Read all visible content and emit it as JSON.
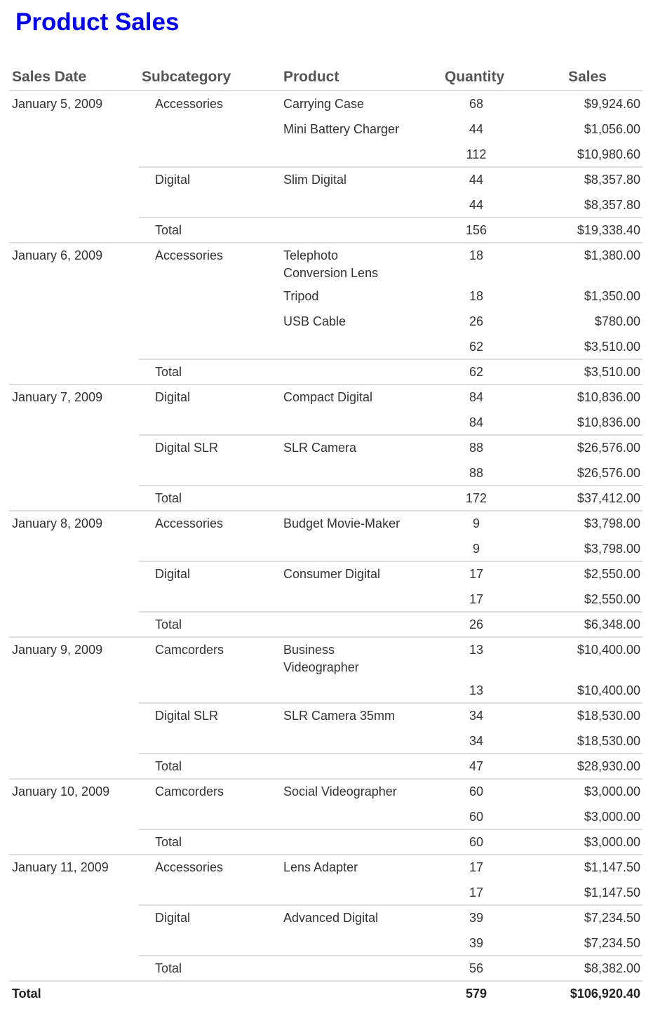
{
  "title": "Product Sales",
  "columns": {
    "date": "Sales Date",
    "subcategory": "Subcategory",
    "product": "Product",
    "quantity": "Quantity",
    "sales": "Sales"
  },
  "total_label": "Total",
  "groups": [
    {
      "date": "January 5, 2009",
      "subcategories": [
        {
          "name": "Accessories",
          "products": [
            {
              "name": "Carrying Case",
              "qty": "68",
              "sales": "$9,924.60"
            },
            {
              "name": "Mini Battery Charger",
              "qty": "44",
              "sales": "$1,056.00"
            }
          ],
          "qty": "112",
          "sales": "$10,980.60"
        },
        {
          "name": "Digital",
          "products": [
            {
              "name": "Slim Digital",
              "qty": "44",
              "sales": "$8,357.80"
            }
          ],
          "qty": "44",
          "sales": "$8,357.80"
        }
      ],
      "qty": "156",
      "sales": "$19,338.40"
    },
    {
      "date": "January 6, 2009",
      "subcategories": [
        {
          "name": "Accessories",
          "products": [
            {
              "name": "Telephoto\nConversion Lens",
              "qty": "18",
              "sales": "$1,380.00"
            },
            {
              "name": "Tripod",
              "qty": "18",
              "sales": "$1,350.00"
            },
            {
              "name": "USB Cable",
              "qty": "26",
              "sales": "$780.00"
            }
          ],
          "qty": "62",
          "sales": "$3,510.00"
        }
      ],
      "qty": "62",
      "sales": "$3,510.00"
    },
    {
      "date": "January 7, 2009",
      "subcategories": [
        {
          "name": "Digital",
          "products": [
            {
              "name": "Compact Digital",
              "qty": "84",
              "sales": "$10,836.00"
            }
          ],
          "qty": "84",
          "sales": "$10,836.00"
        },
        {
          "name": "Digital SLR",
          "products": [
            {
              "name": "SLR Camera",
              "qty": "88",
              "sales": "$26,576.00"
            }
          ],
          "qty": "88",
          "sales": "$26,576.00"
        }
      ],
      "qty": "172",
      "sales": "$37,412.00"
    },
    {
      "date": "January 8, 2009",
      "subcategories": [
        {
          "name": "Accessories",
          "products": [
            {
              "name": "Budget Movie-Maker",
              "qty": "9",
              "sales": "$3,798.00"
            }
          ],
          "qty": "9",
          "sales": "$3,798.00"
        },
        {
          "name": "Digital",
          "products": [
            {
              "name": "Consumer Digital",
              "qty": "17",
              "sales": "$2,550.00"
            }
          ],
          "qty": "17",
          "sales": "$2,550.00"
        }
      ],
      "qty": "26",
      "sales": "$6,348.00"
    },
    {
      "date": "January 9, 2009",
      "subcategories": [
        {
          "name": "Camcorders",
          "products": [
            {
              "name": "Business\nVideographer",
              "qty": "13",
              "sales": "$10,400.00"
            }
          ],
          "qty": "13",
          "sales": "$10,400.00"
        },
        {
          "name": "Digital SLR",
          "products": [
            {
              "name": "SLR Camera 35mm",
              "qty": "34",
              "sales": "$18,530.00"
            }
          ],
          "qty": "34",
          "sales": "$18,530.00"
        }
      ],
      "qty": "47",
      "sales": "$28,930.00"
    },
    {
      "date": "January 10, 2009",
      "subcategories": [
        {
          "name": "Camcorders",
          "products": [
            {
              "name": "Social Videographer",
              "qty": "60",
              "sales": "$3,000.00"
            }
          ],
          "qty": "60",
          "sales": "$3,000.00"
        }
      ],
      "qty": "60",
      "sales": "$3,000.00"
    },
    {
      "date": "January 11, 2009",
      "subcategories": [
        {
          "name": "Accessories",
          "products": [
            {
              "name": "Lens Adapter",
              "qty": "17",
              "sales": "$1,147.50"
            }
          ],
          "qty": "17",
          "sales": "$1,147.50"
        },
        {
          "name": "Digital",
          "products": [
            {
              "name": "Advanced Digital",
              "qty": "39",
              "sales": "$7,234.50"
            }
          ],
          "qty": "39",
          "sales": "$7,234.50"
        }
      ],
      "qty": "56",
      "sales": "$8,382.00"
    }
  ],
  "grand_total": {
    "label": "Total",
    "qty": "579",
    "sales": "$106,920.40"
  }
}
